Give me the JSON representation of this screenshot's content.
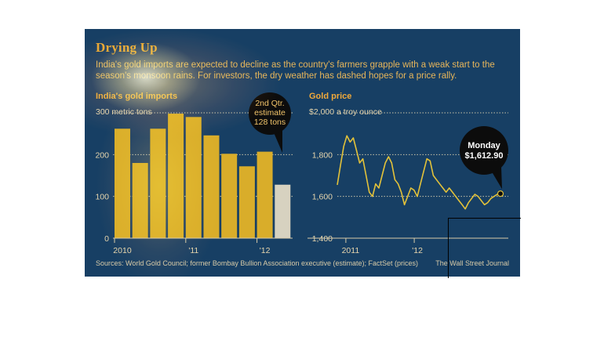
{
  "header": {
    "title": "Drying Up",
    "subtitle": "India's gold imports are expected to decline as the country's farmers grapple with a weak start to the season's monsoon rains. For investors, the dry weather has dashed hopes for a price rally."
  },
  "colors": {
    "panel_bg": "#173f64",
    "bar_gold": "#d9ad2a",
    "bar_estimate": "#d7d2c0",
    "line_gold": "#e3c23a",
    "title_orange": "#e8a735"
  },
  "chart_data": [
    {
      "type": "bar",
      "title": "India's gold imports",
      "unit_label": "300 metric tons",
      "yticks": [
        "0",
        "100",
        "200"
      ],
      "ylim": [
        0,
        300
      ],
      "xtick_labels": [
        "2010",
        "'11",
        "'12"
      ],
      "values": [
        262,
        180,
        262,
        298,
        290,
        246,
        202,
        172,
        207,
        128
      ],
      "estimate_index": 9,
      "callout": "2nd Qtr. estimate 128 tons",
      "grid": true
    },
    {
      "type": "line",
      "title": "Gold price",
      "unit_label": "$2,000 a troy ounce",
      "yticks": [
        "1,400",
        "1,600",
        "1,800"
      ],
      "ylim": [
        1400,
        2000
      ],
      "xtick_labels": [
        "2011",
        "'12"
      ],
      "values": [
        1655,
        1750,
        1840,
        1890,
        1860,
        1880,
        1820,
        1760,
        1780,
        1700,
        1620,
        1600,
        1660,
        1640,
        1700,
        1760,
        1790,
        1760,
        1680,
        1660,
        1620,
        1560,
        1600,
        1640,
        1630,
        1600,
        1660,
        1720,
        1780,
        1770,
        1700,
        1680,
        1660,
        1640,
        1620,
        1640,
        1620,
        1600,
        1580,
        1560,
        1540,
        1570,
        1590,
        1610,
        1600,
        1580,
        1560,
        1570,
        1590,
        1600,
        1610,
        1613
      ],
      "callout": "Monday $1,612.90",
      "grid": true
    }
  ],
  "footer": {
    "source": "Sources: World Gold Council; former Bombay Bullion Association executive (estimate); FactSet (prices)",
    "credit": "The Wall Street Journal"
  }
}
